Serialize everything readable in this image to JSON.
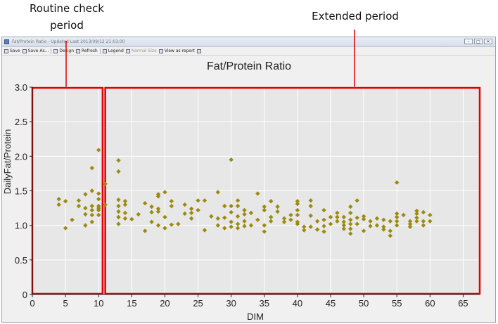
{
  "annotations": {
    "routine": {
      "text_line1": "Routine check",
      "text_line2": "period"
    },
    "extended": {
      "text": "Extended period"
    }
  },
  "window": {
    "title": "Fat/Protein Ratio - Updated Last 2013/09/12 21:03:00",
    "controls": [
      "–",
      "□",
      "✕"
    ]
  },
  "toolbar": {
    "items": [
      {
        "label": "Save",
        "icon": "save-icon",
        "enabled": true
      },
      {
        "label": "Save As...",
        "icon": "save-as-icon",
        "enabled": true
      },
      {
        "label": "Design",
        "icon": "design-icon",
        "enabled": true
      },
      {
        "label": "Refresh",
        "icon": "refresh-icon",
        "enabled": true
      },
      {
        "label": "Legend",
        "icon": "legend-icon",
        "enabled": true
      },
      {
        "label": "Normal Size",
        "icon": "normal-size-icon",
        "enabled": false
      },
      {
        "label": "View as report",
        "icon": "report-icon",
        "enabled": true
      },
      {
        "label": "",
        "icon": "help-icon",
        "enabled": true
      }
    ]
  },
  "chart_data": {
    "type": "scatter",
    "title": "Fat/Protein Ratio",
    "xlabel": "DIM",
    "ylabel": "DailyFat/Protein",
    "xlim": [
      0,
      67.5
    ],
    "ylim": [
      0,
      3.0
    ],
    "xticks": [
      "0",
      "5",
      "10",
      "15",
      "20",
      "25",
      "30",
      "35",
      "40",
      "45",
      "50",
      "55",
      "60",
      "65"
    ],
    "yticks": [
      "0",
      "0.5",
      "1.0",
      "1.5",
      "2.0",
      "2.5",
      "3.0"
    ],
    "grid": true,
    "marker_color": "#9b8a10",
    "annotation_box_color": "#e00000",
    "regions": [
      {
        "x0": 0,
        "x1": 10.6,
        "label": "Routine check period"
      },
      {
        "x0": 11,
        "x1": 67.5,
        "label": "Extended period"
      }
    ],
    "points": [
      [
        4,
        1.38
      ],
      [
        4,
        1.3
      ],
      [
        5,
        1.35
      ],
      [
        5,
        0.96
      ],
      [
        6,
        1.08
      ],
      [
        7,
        1.28
      ],
      [
        7,
        1.36
      ],
      [
        8,
        1.45
      ],
      [
        8,
        1.25
      ],
      [
        8,
        1.16
      ],
      [
        8,
        1.0
      ],
      [
        9,
        1.83
      ],
      [
        9,
        1.5
      ],
      [
        9,
        1.28
      ],
      [
        9,
        1.22
      ],
      [
        9,
        1.15
      ],
      [
        9,
        1.05
      ],
      [
        10,
        2.09
      ],
      [
        10,
        1.46
      ],
      [
        10,
        1.38
      ],
      [
        10,
        1.28
      ],
      [
        10,
        1.25
      ],
      [
        10,
        1.22
      ],
      [
        10,
        1.15
      ],
      [
        11,
        1.6
      ],
      [
        11,
        1.3
      ],
      [
        13,
        1.94
      ],
      [
        13,
        1.78
      ],
      [
        13,
        1.37
      ],
      [
        13,
        1.28
      ],
      [
        13,
        1.2
      ],
      [
        13,
        1.12
      ],
      [
        13,
        1.02
      ],
      [
        14,
        1.35
      ],
      [
        14,
        1.3
      ],
      [
        14,
        1.18
      ],
      [
        14,
        1.1
      ],
      [
        15,
        1.09
      ],
      [
        16,
        1.16
      ],
      [
        17,
        1.32
      ],
      [
        17,
        0.92
      ],
      [
        18,
        1.27
      ],
      [
        18,
        1.19
      ],
      [
        18,
        1.05
      ],
      [
        19,
        1.45
      ],
      [
        19,
        1.42
      ],
      [
        19,
        1.24
      ],
      [
        19,
        1.2
      ],
      [
        19,
        1.0
      ],
      [
        20,
        1.48
      ],
      [
        20,
        1.12
      ],
      [
        20,
        0.96
      ],
      [
        21,
        1.35
      ],
      [
        21,
        1.28
      ],
      [
        21,
        1.01
      ],
      [
        22,
        1.02
      ],
      [
        23,
        1.3
      ],
      [
        23,
        1.17
      ],
      [
        24,
        1.24
      ],
      [
        24,
        1.18
      ],
      [
        24,
        1.1
      ],
      [
        25,
        1.36
      ],
      [
        25,
        1.22
      ],
      [
        26,
        1.36
      ],
      [
        26,
        0.93
      ],
      [
        27,
        1.13
      ],
      [
        28,
        1.48
      ],
      [
        28,
        1.1
      ],
      [
        28,
        1.0
      ],
      [
        29,
        1.28
      ],
      [
        29,
        1.11
      ],
      [
        29,
        0.96
      ],
      [
        30,
        1.95
      ],
      [
        30,
        1.28
      ],
      [
        30,
        1.19
      ],
      [
        30,
        1.05
      ],
      [
        30,
        0.98
      ],
      [
        31,
        1.36
      ],
      [
        31,
        1.28
      ],
      [
        31,
        1.13
      ],
      [
        31,
        1.02
      ],
      [
        31,
        0.96
      ],
      [
        32,
        1.22
      ],
      [
        32,
        1.16
      ],
      [
        32,
        1.06
      ],
      [
        32,
        0.99
      ],
      [
        33,
        1.18
      ],
      [
        33,
        1.0
      ],
      [
        34,
        1.46
      ],
      [
        34,
        1.08
      ],
      [
        35,
        1.27
      ],
      [
        35,
        1.22
      ],
      [
        35,
        1.0
      ],
      [
        35,
        0.91
      ],
      [
        36,
        1.35
      ],
      [
        36,
        1.12
      ],
      [
        36,
        1.06
      ],
      [
        37,
        1.27
      ],
      [
        37,
        1.2
      ],
      [
        38,
        1.1
      ],
      [
        38,
        1.05
      ],
      [
        39,
        1.15
      ],
      [
        39,
        1.08
      ],
      [
        40,
        1.35
      ],
      [
        40,
        1.31
      ],
      [
        40,
        1.22
      ],
      [
        40,
        1.15
      ],
      [
        40,
        1.05
      ],
      [
        40,
        1.02
      ],
      [
        41,
        0.98
      ],
      [
        41,
        0.93
      ],
      [
        42,
        1.36
      ],
      [
        42,
        1.28
      ],
      [
        42,
        1.14
      ],
      [
        42,
        0.98
      ],
      [
        43,
        1.06
      ],
      [
        43,
        0.94
      ],
      [
        44,
        1.22
      ],
      [
        44,
        1.08
      ],
      [
        44,
        0.99
      ],
      [
        44,
        0.91
      ],
      [
        45,
        1.12
      ],
      [
        45,
        1.02
      ],
      [
        46,
        1.18
      ],
      [
        46,
        1.12
      ],
      [
        46,
        1.06
      ],
      [
        47,
        1.12
      ],
      [
        47,
        1.05
      ],
      [
        47,
        1.0
      ],
      [
        47,
        0.95
      ],
      [
        48,
        1.27
      ],
      [
        48,
        1.18
      ],
      [
        48,
        1.08
      ],
      [
        48,
        1.02
      ],
      [
        48,
        0.95
      ],
      [
        48,
        0.88
      ],
      [
        49,
        1.36
      ],
      [
        49,
        1.11
      ],
      [
        49,
        1.02
      ],
      [
        50,
        1.13
      ],
      [
        50,
        1.09
      ],
      [
        50,
        0.92
      ],
      [
        51,
        1.06
      ],
      [
        51,
        0.99
      ],
      [
        52,
        1.1
      ],
      [
        52,
        1.0
      ],
      [
        53,
        1.08
      ],
      [
        53,
        0.98
      ],
      [
        53,
        0.94
      ],
      [
        54,
        1.06
      ],
      [
        54,
        0.92
      ],
      [
        54,
        0.85
      ],
      [
        55,
        1.62
      ],
      [
        55,
        1.17
      ],
      [
        55,
        1.12
      ],
      [
        55,
        1.06
      ],
      [
        55,
        1.0
      ],
      [
        56,
        1.15
      ],
      [
        57,
        1.06
      ],
      [
        57,
        1.02
      ],
      [
        57,
        0.98
      ],
      [
        58,
        1.21
      ],
      [
        58,
        1.17
      ],
      [
        58,
        1.11
      ],
      [
        58,
        1.06
      ],
      [
        59,
        1.19
      ],
      [
        59,
        1.06
      ],
      [
        59,
        1.0
      ],
      [
        60,
        1.15
      ],
      [
        60,
        1.06
      ]
    ]
  }
}
